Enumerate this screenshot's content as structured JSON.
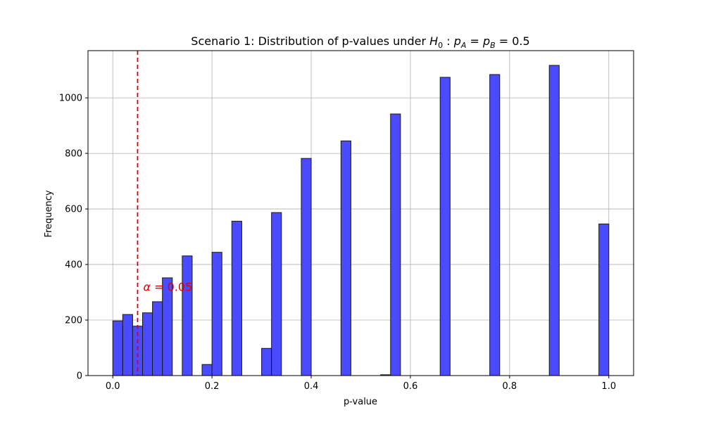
{
  "chart_data": {
    "type": "bar",
    "title": "Scenario 1: Distribution of p-values under H₀ : p_A = p_B = 0.5",
    "title_parts": {
      "prefix": "Scenario 1: Distribution of p-values under ",
      "H": "H",
      "H_sub": "0",
      "sep": " : ",
      "pA": "p",
      "pA_sub": "A",
      "eq1": " = ",
      "pB": "p",
      "pB_sub": "B",
      "eq2": " = 0.5"
    },
    "xlabel": "p-value",
    "ylabel": "Frequency",
    "xlim": [
      -0.05,
      1.05
    ],
    "ylim": [
      0,
      1170
    ],
    "xticks": [
      0.0,
      0.2,
      0.4,
      0.6,
      0.8,
      1.0
    ],
    "xtick_labels": [
      "0.0",
      "0.2",
      "0.4",
      "0.6",
      "0.8",
      "1.0"
    ],
    "yticks": [
      0,
      200,
      400,
      600,
      800,
      1000
    ],
    "ytick_labels": [
      "0",
      "200",
      "400",
      "600",
      "800",
      "1000"
    ],
    "grid": true,
    "bin_width": 0.02,
    "bins": [
      {
        "x0": 0.0,
        "x1": 0.02,
        "count": 197
      },
      {
        "x0": 0.02,
        "x1": 0.04,
        "count": 220
      },
      {
        "x0": 0.04,
        "x1": 0.06,
        "count": 178
      },
      {
        "x0": 0.06,
        "x1": 0.08,
        "count": 226
      },
      {
        "x0": 0.08,
        "x1": 0.1,
        "count": 266
      },
      {
        "x0": 0.1,
        "x1": 0.12,
        "count": 352
      },
      {
        "x0": 0.14,
        "x1": 0.16,
        "count": 431
      },
      {
        "x0": 0.18,
        "x1": 0.2,
        "count": 40
      },
      {
        "x0": 0.2,
        "x1": 0.22,
        "count": 444
      },
      {
        "x0": 0.24,
        "x1": 0.26,
        "count": 556
      },
      {
        "x0": 0.3,
        "x1": 0.32,
        "count": 98
      },
      {
        "x0": 0.32,
        "x1": 0.34,
        "count": 587
      },
      {
        "x0": 0.38,
        "x1": 0.4,
        "count": 782
      },
      {
        "x0": 0.46,
        "x1": 0.48,
        "count": 845
      },
      {
        "x0": 0.54,
        "x1": 0.56,
        "count": 3
      },
      {
        "x0": 0.56,
        "x1": 0.58,
        "count": 942
      },
      {
        "x0": 0.66,
        "x1": 0.68,
        "count": 1074
      },
      {
        "x0": 0.76,
        "x1": 0.78,
        "count": 1084
      },
      {
        "x0": 0.88,
        "x1": 0.9,
        "count": 1117
      },
      {
        "x0": 0.98,
        "x1": 1.0,
        "count": 546
      }
    ],
    "bar_color": "#4a4aff",
    "bar_edge_color": "#1a1a1a",
    "threshold": {
      "x": 0.05,
      "color": "#e00000",
      "label_alpha": "α",
      "label_eq": " = 0.05",
      "label_y": 305
    }
  }
}
